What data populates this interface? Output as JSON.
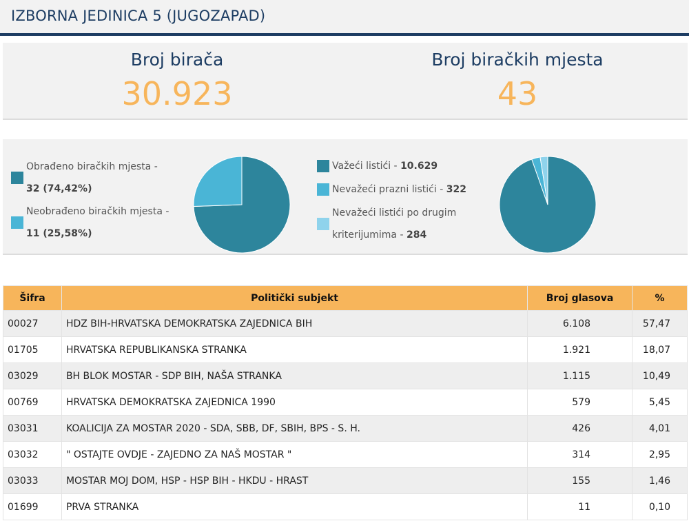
{
  "header": {
    "title": "IZBORNA JEDINICA 5 (JUGOZAPAD)"
  },
  "stats": {
    "voters_label": "Broj birača",
    "voters_value": "30.923",
    "stations_label": "Broj biračkih mjesta",
    "stations_value": "43"
  },
  "charts": {
    "colors": {
      "dark": "#2d859c",
      "mid": "#4ab5d6",
      "light": "#8fd3ec",
      "accent": "#f7b55b",
      "navy": "#1d3d63"
    },
    "stations_pie": {
      "legend": [
        {
          "label": "Obrađeno biračkih mjesta -",
          "value": "32 (74,42%)"
        },
        {
          "label": "Neobrađeno biračkih mjesta -",
          "value": "11 (25,58%)"
        }
      ],
      "slices": [
        32,
        11
      ]
    },
    "ballots_pie": {
      "legend": [
        {
          "label": "Važeći listići - ",
          "value": "10.629"
        },
        {
          "label": "Nevažeći prazni listići - ",
          "value": "322"
        },
        {
          "label_line1": "Nevažeći listići po drugim",
          "label_line2": "kriterijumima - ",
          "value": "284"
        }
      ],
      "slices": [
        10629,
        322,
        284
      ]
    }
  },
  "table": {
    "headers": {
      "code": "Šifra",
      "party": "Politički subjekt",
      "votes": "Broj glasova",
      "pct": "%"
    },
    "rows": [
      {
        "code": "00027",
        "party": "HDZ BIH-HRVATSKA DEMOKRATSKA ZAJEDNICA BIH",
        "votes": "6.108",
        "pct": "57,47"
      },
      {
        "code": "01705",
        "party": "HRVATSKA REPUBLIKANSKA STRANKA",
        "votes": "1.921",
        "pct": "18,07"
      },
      {
        "code": "03029",
        "party": "BH BLOK MOSTAR - SDP BIH, NAŠA STRANKA",
        "votes": "1.115",
        "pct": "10,49"
      },
      {
        "code": "00769",
        "party": "HRVATSKA DEMOKRATSKA ZAJEDNICA 1990",
        "votes": "579",
        "pct": "5,45"
      },
      {
        "code": "03031",
        "party": "KOALICIJA ZA MOSTAR 2020 - SDA, SBB, DF, SBIH, BPS - S. H.",
        "votes": "426",
        "pct": "4,01"
      },
      {
        "code": "03032",
        "party": "\" OSTAJTE OVDJE - ZAJEDNO ZA NAŠ MOSTAR \"",
        "votes": "314",
        "pct": "2,95"
      },
      {
        "code": "03033",
        "party": "MOSTAR MOJ DOM, HSP - HSP BIH - HKDU - HRAST",
        "votes": "155",
        "pct": "1,46"
      },
      {
        "code": "01699",
        "party": "PRVA STRANKA",
        "votes": "11",
        "pct": "0,10"
      }
    ]
  }
}
